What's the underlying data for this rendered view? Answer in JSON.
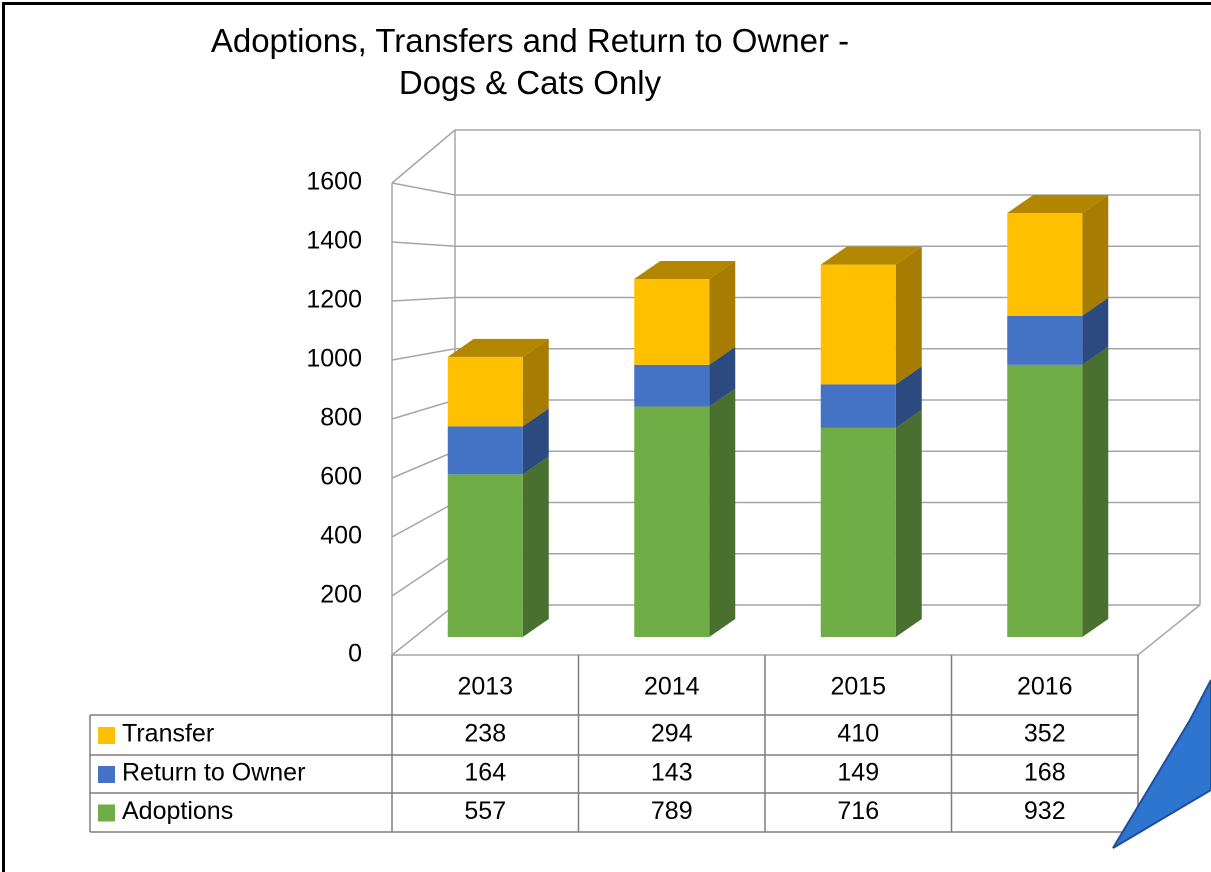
{
  "chart_data": {
    "type": "bar3d_stacked",
    "title": "Adoptions, Transfers and Return to Owner - Dogs & Cats Only",
    "categories": [
      "2013",
      "2014",
      "2015",
      "2016"
    ],
    "series": [
      {
        "name": "Adoptions",
        "color": "#70ad47",
        "values": [
          557,
          789,
          716,
          932
        ]
      },
      {
        "name": "Return to Owner",
        "color": "#4472c4",
        "values": [
          164,
          143,
          149,
          168
        ]
      },
      {
        "name": "Transfer",
        "color": "#ffc000",
        "values": [
          238,
          294,
          410,
          352
        ]
      }
    ],
    "ylim": [
      0,
      1600
    ],
    "yticks": [
      0,
      200,
      400,
      600,
      800,
      1000,
      1200,
      1400,
      1600
    ],
    "grid": true
  }
}
